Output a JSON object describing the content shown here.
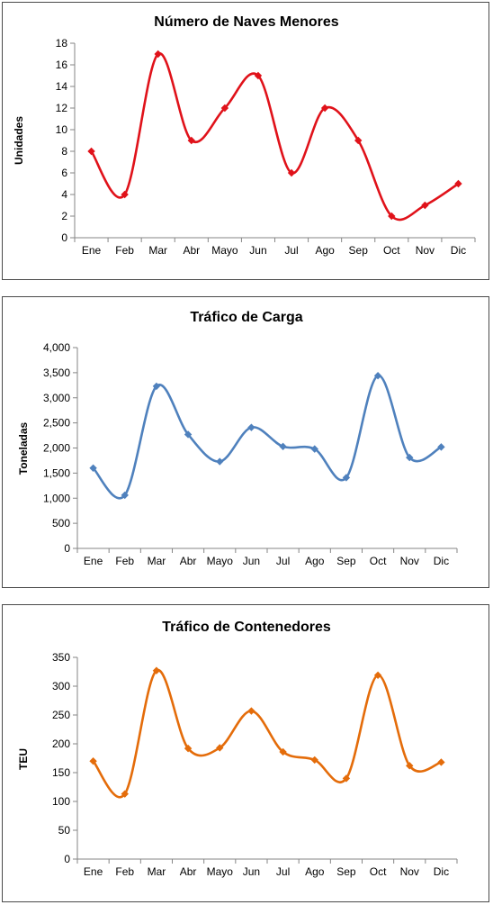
{
  "chart_data": [
    {
      "type": "line",
      "title": "Número de Naves Menores",
      "ylabel": "Unidades",
      "xlabel": "",
      "ylim": [
        0,
        18
      ],
      "yticks": [
        "0",
        "2",
        "4",
        "6",
        "8",
        "10",
        "12",
        "14",
        "16",
        "18"
      ],
      "categories": [
        "Ene",
        "Feb",
        "Mar",
        "Abr",
        "Mayo",
        "Jun",
        "Jul",
        "Ago",
        "Sep",
        "Oct",
        "Nov",
        "Dic"
      ],
      "series": [
        {
          "color": "#e0121a",
          "values": [
            8,
            4,
            17,
            9,
            12,
            15,
            6,
            12,
            9,
            2,
            3,
            5
          ]
        }
      ],
      "smooth": true,
      "grid": false,
      "legend": "none"
    },
    {
      "type": "line",
      "title": "Tráfico de Carga",
      "ylabel": "Toneladas",
      "xlabel": "",
      "ylim": [
        0,
        4000
      ],
      "yticks": [
        "0",
        "500",
        "1,000",
        "1,500",
        "2,000",
        "2,500",
        "3,000",
        "3,500",
        "4,000"
      ],
      "categories": [
        "Ene",
        "Feb",
        "Mar",
        "Abr",
        "Mayo",
        "Jun",
        "Jul",
        "Ago",
        "Sep",
        "Oct",
        "Nov",
        "Dic"
      ],
      "series": [
        {
          "color": "#4f81bd",
          "values": [
            1600,
            1060,
            3230,
            2270,
            1730,
            2410,
            2030,
            1980,
            1410,
            3440,
            1810,
            2020
          ]
        }
      ],
      "smooth": true,
      "grid": false,
      "legend": "none"
    },
    {
      "type": "line",
      "title": "Tráfico de Contenedores",
      "ylabel": "TEU",
      "xlabel": "",
      "ylim": [
        0,
        350
      ],
      "yticks": [
        "0",
        "50",
        "100",
        "150",
        "200",
        "250",
        "300",
        "350"
      ],
      "categories": [
        "Ene",
        "Feb",
        "Mar",
        "Abr",
        "Mayo",
        "Jun",
        "Jul",
        "Ago",
        "Sep",
        "Oct",
        "Nov",
        "Dic"
      ],
      "series": [
        {
          "color": "#e46c0a",
          "values": [
            170,
            113,
            327,
            192,
            193,
            257,
            186,
            172,
            140,
            319,
            162,
            168
          ]
        }
      ],
      "smooth": true,
      "grid": false,
      "legend": "none"
    }
  ]
}
